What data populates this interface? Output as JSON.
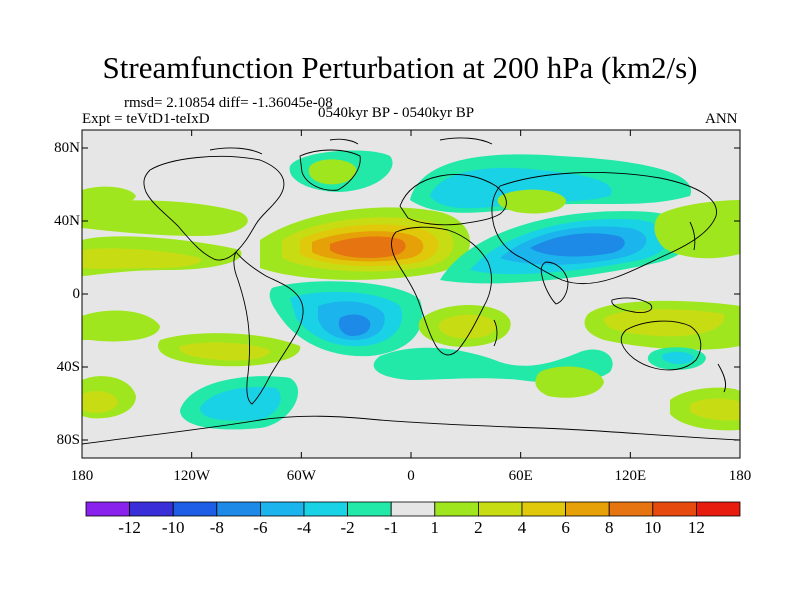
{
  "title": "Streamfunction Perturbation at 200 hPa (km2/s)",
  "stats": "rmsd= 2.10854 diff= -1.36045e-08",
  "experiment": "Expt = teVtD1-teIxD",
  "period": "0540kyr BP - 0540kyr BP",
  "season": "ANN",
  "axes": {
    "lat_ticks": [
      "80N",
      "40N",
      "0",
      "40S",
      "80S"
    ],
    "lon_ticks": [
      "180",
      "120W",
      "60W",
      "0",
      "60E",
      "120E",
      "180"
    ]
  },
  "colorbar": {
    "labels": [
      "-12",
      "-10",
      "-8",
      "-6",
      "-4",
      "-2",
      "-1",
      "1",
      "2",
      "4",
      "6",
      "8",
      "10",
      "12"
    ],
    "colors": [
      "#8a22ee",
      "#3a2ed8",
      "#1e5ee6",
      "#1d8ae8",
      "#1cb4ec",
      "#1ad2e6",
      "#22e8a8",
      "#e6e6e6",
      "#a0e61e",
      "#c8dc14",
      "#e0c80a",
      "#e6a008",
      "#e67410",
      "#e64a0c",
      "#e81c0e"
    ]
  },
  "colors": {
    "background": "#e6e6e6",
    "coast": "#000000"
  }
}
